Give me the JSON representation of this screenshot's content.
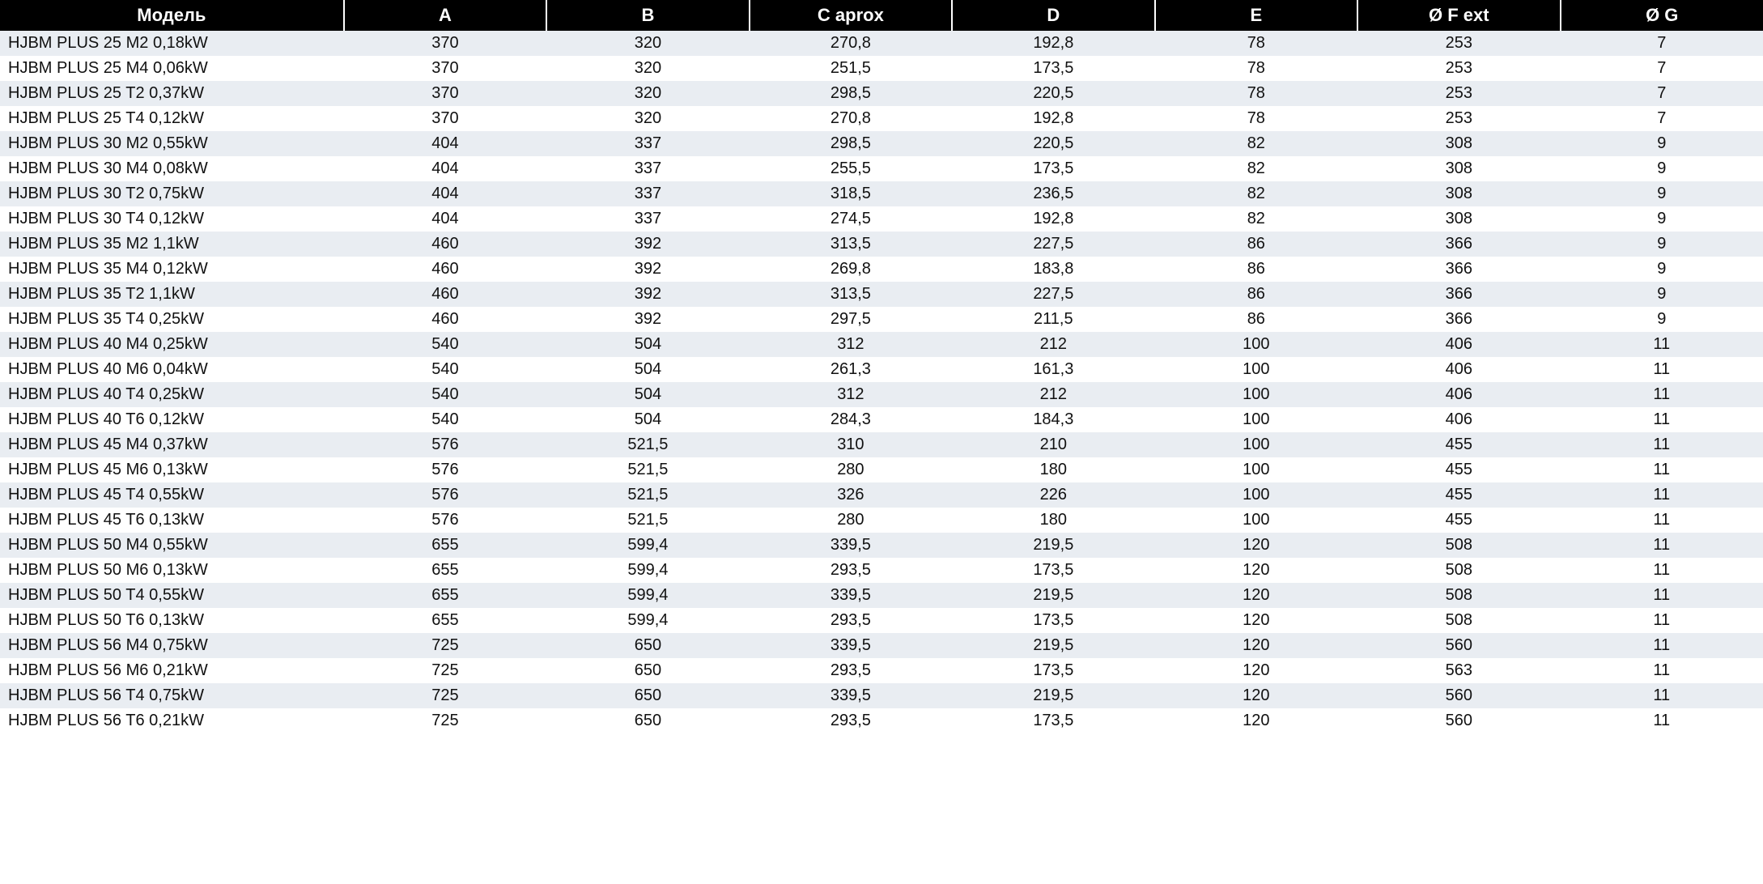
{
  "table": {
    "header_bg": "#000000",
    "header_fg": "#ffffff",
    "row_odd_bg": "#e9edf2",
    "row_even_bg": "#ffffff",
    "text_color": "#111111",
    "header_fontsize": 22,
    "cell_fontsize": 20,
    "columns": [
      {
        "label": "Модель",
        "align": "left",
        "width_pct": 19.5
      },
      {
        "label": "A",
        "align": "center",
        "width_pct": 11.5
      },
      {
        "label": "B",
        "align": "center",
        "width_pct": 11.5
      },
      {
        "label": "C  aprox",
        "align": "center",
        "width_pct": 11.5
      },
      {
        "label": "D",
        "align": "center",
        "width_pct": 11.5
      },
      {
        "label": "E",
        "align": "center",
        "width_pct": 11.5
      },
      {
        "label": "Ø F ext",
        "align": "center",
        "width_pct": 11.5
      },
      {
        "label": "Ø G",
        "align": "center",
        "width_pct": 11.5
      }
    ],
    "rows": [
      [
        "HJBM PLUS 25 M2 0,18kW",
        "370",
        "320",
        "270,8",
        "192,8",
        "78",
        "253",
        "7"
      ],
      [
        "HJBM PLUS 25 M4 0,06kW",
        "370",
        "320",
        "251,5",
        "173,5",
        "78",
        "253",
        "7"
      ],
      [
        "HJBM PLUS 25 T2 0,37kW",
        "370",
        "320",
        "298,5",
        "220,5",
        "78",
        "253",
        "7"
      ],
      [
        "HJBM PLUS 25 T4 0,12kW",
        "370",
        "320",
        "270,8",
        "192,8",
        "78",
        "253",
        "7"
      ],
      [
        "HJBM PLUS 30 M2 0,55kW",
        "404",
        "337",
        "298,5",
        "220,5",
        "82",
        "308",
        "9"
      ],
      [
        "HJBM PLUS 30 M4 0,08kW",
        "404",
        "337",
        "255,5",
        "173,5",
        "82",
        "308",
        "9"
      ],
      [
        "HJBM PLUS 30 T2 0,75kW",
        "404",
        "337",
        "318,5",
        "236,5",
        "82",
        "308",
        "9"
      ],
      [
        "HJBM PLUS 30 T4 0,12kW",
        "404",
        "337",
        "274,5",
        "192,8",
        "82",
        "308",
        "9"
      ],
      [
        "HJBM PLUS 35 M2 1,1kW",
        "460",
        "392",
        "313,5",
        "227,5",
        "86",
        "366",
        "9"
      ],
      [
        "HJBM PLUS 35 M4 0,12kW",
        "460",
        "392",
        "269,8",
        "183,8",
        "86",
        "366",
        "9"
      ],
      [
        "HJBM PLUS 35 T2 1,1kW",
        "460",
        "392",
        "313,5",
        "227,5",
        "86",
        "366",
        "9"
      ],
      [
        "HJBM PLUS 35 T4 0,25kW",
        "460",
        "392",
        "297,5",
        "211,5",
        "86",
        "366",
        "9"
      ],
      [
        "HJBM PLUS 40 M4 0,25kW",
        "540",
        "504",
        "312",
        "212",
        "100",
        "406",
        "11"
      ],
      [
        "HJBM PLUS 40 M6 0,04kW",
        "540",
        "504",
        "261,3",
        "161,3",
        "100",
        "406",
        "11"
      ],
      [
        "HJBM PLUS 40 T4 0,25kW",
        "540",
        "504",
        "312",
        "212",
        "100",
        "406",
        "11"
      ],
      [
        "HJBM PLUS 40 T6 0,12kW",
        "540",
        "504",
        "284,3",
        "184,3",
        "100",
        "406",
        "11"
      ],
      [
        "HJBM PLUS 45 M4 0,37kW",
        "576",
        "521,5",
        "310",
        "210",
        "100",
        "455",
        "11"
      ],
      [
        "HJBM PLUS 45 M6 0,13kW",
        "576",
        "521,5",
        "280",
        "180",
        "100",
        "455",
        "11"
      ],
      [
        "HJBM PLUS 45 T4 0,55kW",
        "576",
        "521,5",
        "326",
        "226",
        "100",
        "455",
        "11"
      ],
      [
        "HJBM PLUS 45 T6 0,13kW",
        "576",
        "521,5",
        "280",
        "180",
        "100",
        "455",
        "11"
      ],
      [
        "HJBM PLUS 50 M4 0,55kW",
        "655",
        "599,4",
        "339,5",
        "219,5",
        "120",
        "508",
        "11"
      ],
      [
        "HJBM PLUS 50 M6 0,13kW",
        "655",
        "599,4",
        "293,5",
        "173,5",
        "120",
        "508",
        "11"
      ],
      [
        "HJBM PLUS 50 T4 0,55kW",
        "655",
        "599,4",
        "339,5",
        "219,5",
        "120",
        "508",
        "11"
      ],
      [
        "HJBM PLUS 50 T6 0,13kW",
        "655",
        "599,4",
        "293,5",
        "173,5",
        "120",
        "508",
        "11"
      ],
      [
        "HJBM PLUS 56 M4 0,75kW",
        "725",
        "650",
        "339,5",
        "219,5",
        "120",
        "560",
        "11"
      ],
      [
        "HJBM PLUS 56 M6 0,21kW",
        "725",
        "650",
        "293,5",
        "173,5",
        "120",
        "563",
        "11"
      ],
      [
        "HJBM PLUS 56 T4 0,75kW",
        "725",
        "650",
        "339,5",
        "219,5",
        "120",
        "560",
        "11"
      ],
      [
        "HJBM PLUS 56 T6 0,21kW",
        "725",
        "650",
        "293,5",
        "173,5",
        "120",
        "560",
        "11"
      ]
    ]
  }
}
